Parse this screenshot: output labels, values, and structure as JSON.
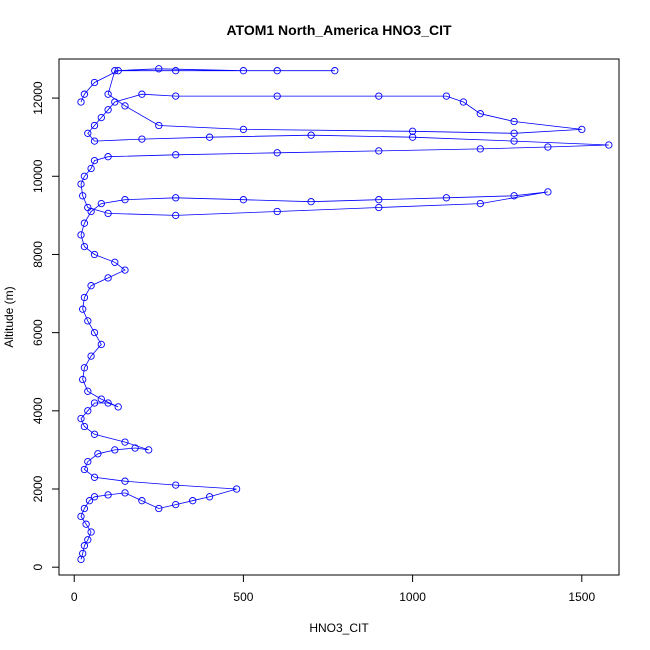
{
  "chart_data": {
    "type": "scatter",
    "title": "ATOM1 North_America HNO3_CIT",
    "xlabel": "HNO3_CIT",
    "ylabel": "Altitude (m)",
    "xlim": [
      -45,
      1610
    ],
    "ylim": [
      -200,
      13000
    ],
    "xticks": [
      0,
      500,
      1000,
      1500
    ],
    "yticks": [
      0,
      2000,
      4000,
      6000,
      8000,
      10000,
      12000
    ],
    "grid": false,
    "legend": "none",
    "marker": "open-circle",
    "connected": true,
    "color": "#0000ff",
    "series": [
      {
        "points": [
          [
            20,
            200
          ],
          [
            25,
            350
          ],
          [
            30,
            550
          ],
          [
            40,
            700
          ],
          [
            50,
            900
          ],
          [
            35,
            1100
          ],
          [
            20,
            1300
          ],
          [
            30,
            1500
          ],
          [
            45,
            1700
          ],
          [
            60,
            1800
          ],
          [
            100,
            1850
          ],
          [
            150,
            1900
          ],
          [
            200,
            1700
          ],
          [
            250,
            1500
          ],
          [
            300,
            1600
          ],
          [
            350,
            1700
          ],
          [
            400,
            1800
          ],
          [
            480,
            2000
          ],
          [
            300,
            2100
          ],
          [
            150,
            2200
          ],
          [
            60,
            2300
          ],
          [
            30,
            2500
          ],
          [
            40,
            2700
          ],
          [
            70,
            2900
          ],
          [
            120,
            3000
          ],
          [
            180,
            3050
          ],
          [
            220,
            3000
          ],
          [
            150,
            3200
          ],
          [
            60,
            3400
          ],
          [
            30,
            3600
          ],
          [
            20,
            3800
          ],
          [
            40,
            4000
          ],
          [
            60,
            4200
          ],
          [
            100,
            4200
          ],
          [
            130,
            4100
          ],
          [
            80,
            4300
          ],
          [
            40,
            4500
          ],
          [
            25,
            4800
          ],
          [
            30,
            5100
          ],
          [
            50,
            5400
          ],
          [
            80,
            5700
          ],
          [
            60,
            6000
          ],
          [
            40,
            6300
          ],
          [
            25,
            6600
          ],
          [
            30,
            6900
          ],
          [
            50,
            7200
          ],
          [
            100,
            7400
          ],
          [
            150,
            7600
          ],
          [
            120,
            7800
          ],
          [
            60,
            8000
          ],
          [
            30,
            8200
          ],
          [
            20,
            8500
          ],
          [
            30,
            8800
          ],
          [
            50,
            9100
          ],
          [
            80,
            9300
          ],
          [
            150,
            9400
          ],
          [
            300,
            9450
          ],
          [
            500,
            9400
          ],
          [
            700,
            9350
          ],
          [
            900,
            9400
          ],
          [
            1100,
            9450
          ],
          [
            1300,
            9500
          ],
          [
            1400,
            9600
          ],
          [
            1200,
            9300
          ],
          [
            900,
            9200
          ],
          [
            600,
            9100
          ],
          [
            300,
            9000
          ],
          [
            100,
            9050
          ],
          [
            40,
            9200
          ],
          [
            25,
            9500
          ],
          [
            20,
            9800
          ],
          [
            30,
            10000
          ],
          [
            50,
            10200
          ],
          [
            60,
            10400
          ],
          [
            100,
            10500
          ],
          [
            300,
            10550
          ],
          [
            600,
            10600
          ],
          [
            900,
            10650
          ],
          [
            1200,
            10700
          ],
          [
            1400,
            10750
          ],
          [
            1580,
            10800
          ],
          [
            1300,
            10900
          ],
          [
            1000,
            11000
          ],
          [
            700,
            11050
          ],
          [
            400,
            11000
          ],
          [
            200,
            10950
          ],
          [
            60,
            10900
          ],
          [
            40,
            11100
          ],
          [
            60,
            11300
          ],
          [
            80,
            11500
          ],
          [
            100,
            11700
          ],
          [
            120,
            11900
          ],
          [
            200,
            12100
          ],
          [
            300,
            12050
          ],
          [
            600,
            12050
          ],
          [
            900,
            12050
          ],
          [
            1100,
            12050
          ],
          [
            1150,
            11900
          ],
          [
            1200,
            11600
          ],
          [
            1300,
            11400
          ],
          [
            1500,
            11200
          ],
          [
            1300,
            11100
          ],
          [
            1000,
            11150
          ],
          [
            500,
            11200
          ],
          [
            250,
            11300
          ],
          [
            150,
            11800
          ],
          [
            100,
            12100
          ],
          [
            120,
            12700
          ],
          [
            250,
            12750
          ],
          [
            500,
            12700
          ],
          [
            770,
            12700
          ],
          [
            600,
            12700
          ],
          [
            300,
            12700
          ],
          [
            130,
            12700
          ],
          [
            60,
            12400
          ],
          [
            30,
            12100
          ],
          [
            20,
            11900
          ]
        ]
      }
    ]
  }
}
